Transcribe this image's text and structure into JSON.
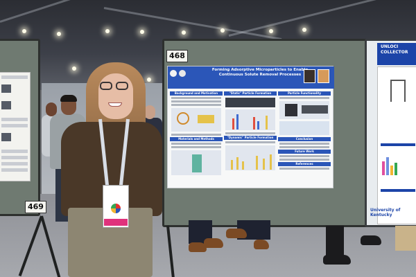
{
  "board_numbers": {
    "main": "468",
    "left": "469"
  },
  "main_poster": {
    "title": "Forming Adsorptive Microparticles to Enable Continuous Solute Removal Processes",
    "sections": {
      "background": "Background and Motivation",
      "static_formation": "\"Static\" Particle Formation",
      "functionality": "Particle Functionality",
      "materials": "Materials and Methods",
      "dynamic_formation": "\"Dynamic\" Particle Formation",
      "conclusion": "Conclusion",
      "future_work": "Future Work",
      "references": "References"
    }
  },
  "right_poster": {
    "title_fragment": "UNLOCI COLLECTOR",
    "footer_text": "University of Kentucky"
  },
  "colors": {
    "poster_blue": "#2b56b8",
    "board_green": "#6f7a71",
    "badge_pink": "#e0317c"
  }
}
